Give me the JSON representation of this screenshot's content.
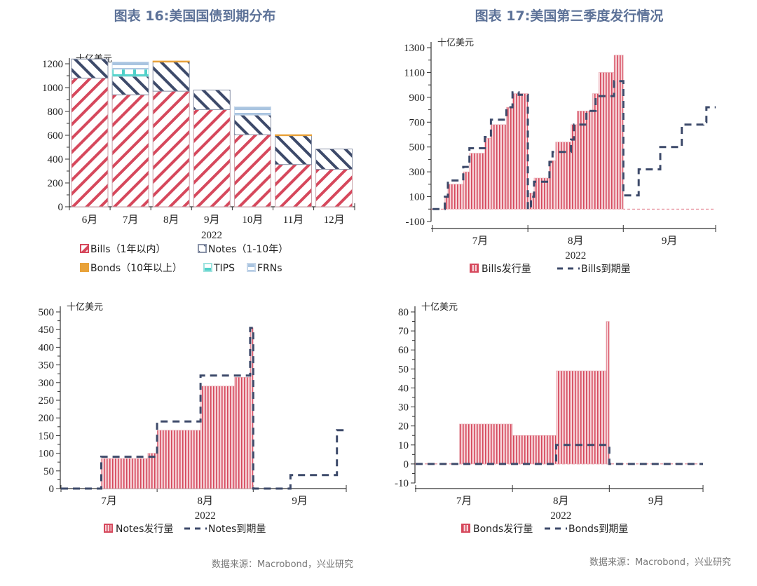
{
  "colors": {
    "bills": "#d6485c",
    "notes": "#3d4a6a",
    "bonds": "#e8a23a",
    "tips": "#4fd1c9",
    "frns": "#a9c4e0",
    "title": "#5d7298",
    "maturity": "#3d4a6a"
  },
  "chart_data": [
    {
      "type": "bar",
      "stacked": true,
      "title": "图表 16:美国国债到期分布",
      "unit": "十亿美元",
      "xlabel": "2022",
      "categories": [
        "6月",
        "7月",
        "8月",
        "9月",
        "10月",
        "11月",
        "12月"
      ],
      "ylim": [
        0,
        1200
      ],
      "yticks": [
        0,
        200,
        400,
        600,
        800,
        1000,
        1200
      ],
      "legend_position": "bottom",
      "series": [
        {
          "key": "bills",
          "name": "Bills（1年以内）",
          "values": [
            1080,
            940,
            970,
            815,
            605,
            355,
            315
          ]
        },
        {
          "key": "notes",
          "name": "Notes（1-10年）",
          "values": [
            160,
            155,
            245,
            165,
            165,
            245,
            170
          ]
        },
        {
          "key": "bonds",
          "name": "Bonds（10年以上）",
          "values": [
            0,
            0,
            8,
            0,
            0,
            5,
            0
          ]
        },
        {
          "key": "tips",
          "name": "TIPS",
          "values": [
            0,
            60,
            0,
            0,
            0,
            0,
            0
          ]
        },
        {
          "key": "frns",
          "name": "FRNs",
          "values": [
            0,
            60,
            0,
            0,
            70,
            0,
            0
          ]
        }
      ],
      "source": "数据来源：Macrobond，兴业研究"
    },
    {
      "type": "area",
      "title": "图表 17:美国第三季度发行情况",
      "unit": "十亿美元",
      "xlabel": "2022",
      "month_labels": [
        "7月",
        "8月",
        "9月"
      ],
      "ylim": [
        -100,
        1300
      ],
      "yticks": [
        -100,
        100,
        300,
        500,
        700,
        900,
        1100,
        1300
      ],
      "legend_position": "bottom",
      "issuance": {
        "name": "Bills发行量",
        "end": "2022-09-01",
        "steps": [
          [
            "2022-07-01",
            0
          ],
          [
            "2022-07-05",
            100
          ],
          [
            "2022-07-06",
            200
          ],
          [
            "2022-07-11",
            300
          ],
          [
            "2022-07-13",
            450
          ],
          [
            "2022-07-18",
            570
          ],
          [
            "2022-07-20",
            680
          ],
          [
            "2022-07-25",
            820
          ],
          [
            "2022-07-27",
            930
          ],
          [
            "2022-08-01",
            130
          ],
          [
            "2022-08-03",
            250
          ],
          [
            "2022-08-08",
            390
          ],
          [
            "2022-08-10",
            540
          ],
          [
            "2022-08-15",
            680
          ],
          [
            "2022-08-17",
            790
          ],
          [
            "2022-08-22",
            930
          ],
          [
            "2022-08-24",
            1100
          ],
          [
            "2022-08-29",
            1240
          ]
        ]
      },
      "maturity": {
        "name": "Bills到期量",
        "end": "2022-10-01",
        "steps": [
          [
            "2022-07-01",
            0
          ],
          [
            "2022-07-05",
            100
          ],
          [
            "2022-07-06",
            230
          ],
          [
            "2022-07-11",
            340
          ],
          [
            "2022-07-13",
            490
          ],
          [
            "2022-07-18",
            580
          ],
          [
            "2022-07-20",
            720
          ],
          [
            "2022-07-25",
            820
          ],
          [
            "2022-07-27",
            940
          ],
          [
            "2022-07-29",
            920
          ],
          [
            "2022-08-01",
            0
          ],
          [
            "2022-08-02",
            100
          ],
          [
            "2022-08-03",
            220
          ],
          [
            "2022-08-08",
            380
          ],
          [
            "2022-08-09",
            460
          ],
          [
            "2022-08-15",
            560
          ],
          [
            "2022-08-16",
            680
          ],
          [
            "2022-08-20",
            790
          ],
          [
            "2022-08-23",
            910
          ],
          [
            "2022-08-29",
            1030
          ],
          [
            "2022-09-01",
            110
          ],
          [
            "2022-09-06",
            320
          ],
          [
            "2022-09-13",
            500
          ],
          [
            "2022-09-20",
            680
          ],
          [
            "2022-09-27",
            700
          ],
          [
            "2022-09-28",
            820
          ]
        ]
      },
      "source": "数据来源：Macrobond，兴业研究"
    },
    {
      "type": "area",
      "title": "",
      "unit": "十亿美元",
      "xlabel": "2022",
      "month_labels": [
        "7月",
        "8月",
        "9月"
      ],
      "ylim": [
        0,
        500
      ],
      "yticks": [
        0,
        50,
        100,
        150,
        200,
        250,
        300,
        350,
        400,
        450,
        500
      ],
      "legend_position": "bottom",
      "issuance": {
        "name": "Notes发行量",
        "end": "2022-09-01",
        "steps": [
          [
            "2022-07-01",
            0
          ],
          [
            "2022-07-14",
            85
          ],
          [
            "2022-07-29",
            100
          ],
          [
            "2022-08-01",
            165
          ],
          [
            "2022-08-15",
            290
          ],
          [
            "2022-08-26",
            315
          ],
          [
            "2022-08-31",
            455
          ]
        ]
      },
      "maturity": {
        "name": "Notes到期量",
        "end": "2022-10-01",
        "steps": [
          [
            "2022-07-01",
            0
          ],
          [
            "2022-07-14",
            90
          ],
          [
            "2022-08-01",
            190
          ],
          [
            "2022-08-15",
            320
          ],
          [
            "2022-08-31",
            455
          ],
          [
            "2022-09-01",
            0
          ],
          [
            "2022-09-13",
            38
          ],
          [
            "2022-09-28",
            165
          ]
        ]
      }
    },
    {
      "type": "area",
      "title": "",
      "unit": "十亿美元",
      "xlabel": "2022",
      "month_labels": [
        "7月",
        "8月",
        "9月"
      ],
      "ylim": [
        -10,
        80
      ],
      "yticks": [
        -10,
        0,
        10,
        20,
        30,
        40,
        50,
        60,
        70,
        80
      ],
      "legend_position": "bottom",
      "issuance": {
        "name": "Bonds发行量",
        "end": "2022-09-01",
        "steps": [
          [
            "2022-07-01",
            0
          ],
          [
            "2022-07-15",
            21
          ],
          [
            "2022-08-01",
            15
          ],
          [
            "2022-08-15",
            49
          ],
          [
            "2022-08-31",
            75
          ]
        ]
      },
      "maturity": {
        "name": "Bonds到期量",
        "end": "2022-10-01",
        "steps": [
          [
            "2022-07-01",
            0
          ],
          [
            "2022-08-15",
            10
          ],
          [
            "2022-09-01",
            0
          ]
        ]
      }
    }
  ]
}
